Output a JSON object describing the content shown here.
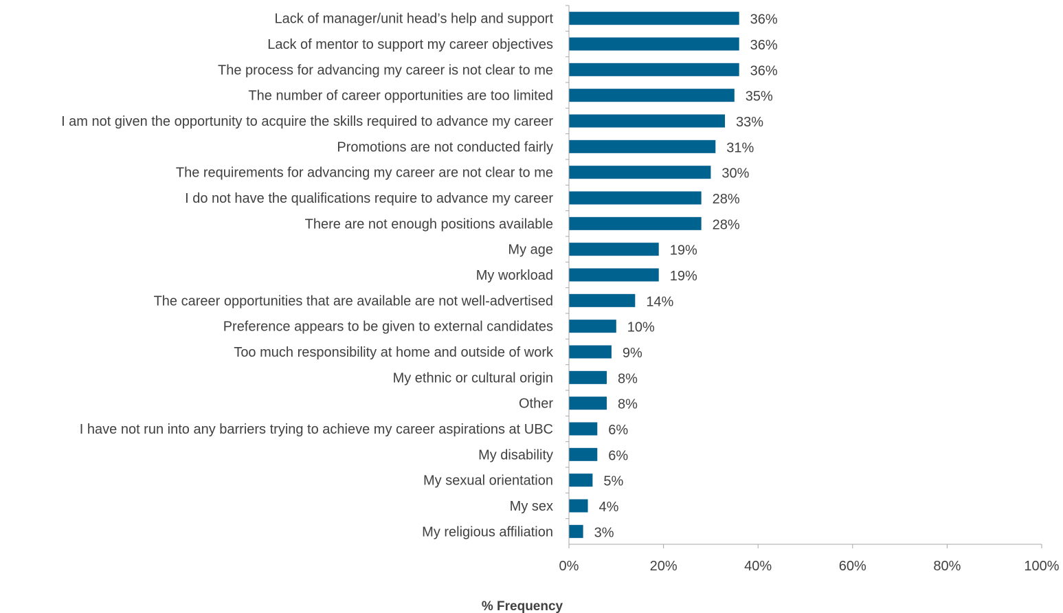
{
  "chart_data": {
    "type": "bar",
    "orientation": "horizontal",
    "categories": [
      "Lack of manager/unit head’s help and support",
      "Lack of mentor to support my career objectives",
      "The process for advancing my career is not clear to me",
      "The number of career opportunities are too limited",
      "I am not given the opportunity to acquire the skills required to advance my career",
      "Promotions are not conducted fairly",
      "The requirements for advancing my career are not clear to me",
      "I do not have the qualifications require to advance my career",
      "There are not enough positions available",
      "My age",
      "My workload",
      "The career opportunities that are available are not well-advertised",
      "Preference appears to be given to external candidates",
      "Too much responsibility at home and outside of work",
      "My ethnic or cultural origin",
      "Other",
      "I have not run into any barriers trying to achieve my career aspirations at UBC",
      "My disability",
      "My sexual orientation",
      "My sex",
      "My religious affiliation"
    ],
    "values": [
      36,
      36,
      36,
      35,
      33,
      31,
      30,
      28,
      28,
      19,
      19,
      14,
      10,
      9,
      8,
      8,
      6,
      6,
      5,
      4,
      3
    ],
    "value_labels": [
      "36%",
      "36%",
      "36%",
      "35%",
      "33%",
      "31%",
      "30%",
      "28%",
      "28%",
      "19%",
      "19%",
      "14%",
      "10%",
      "9%",
      "8%",
      "8%",
      "6%",
      "6%",
      "5%",
      "4%",
      "3%"
    ],
    "xlabel": "% Frequency",
    "xlim": [
      0,
      100
    ],
    "x_ticks": [
      0,
      20,
      40,
      60,
      80,
      100
    ],
    "x_tick_labels": [
      "0%",
      "20%",
      "40%",
      "60%",
      "80%",
      "100%"
    ],
    "grid": false,
    "legend": "none",
    "bar_color": "#00628f",
    "text_color": "#404040",
    "axis_color": "#a6a6a6"
  }
}
